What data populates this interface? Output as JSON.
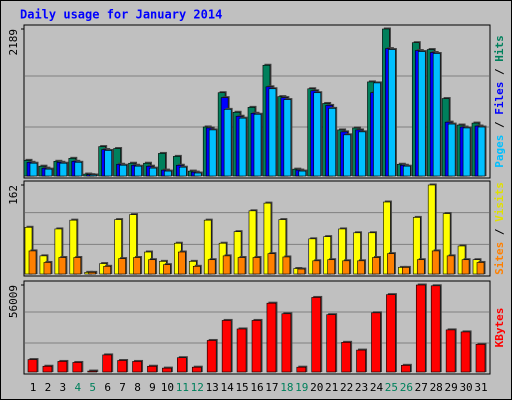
{
  "chart_data": [
    {
      "type": "bar",
      "title": "Daily usage for January 2014",
      "ylim": [
        0,
        2189
      ],
      "yticks": [
        2189
      ],
      "legend_separator": " / ",
      "series": [
        {
          "name": "Hits",
          "color": "#00805c",
          "values": [
            233,
            146,
            219,
            263,
            29,
            438,
            409,
            190,
            190,
            336,
            292,
            73,
            730,
            1240,
            949,
            1022,
            1649,
            1182,
            102,
            1299,
            1080,
            686,
            715,
            1401,
            2189,
            175,
            1985,
            1883,
            1153,
            759,
            788
          ]
        },
        {
          "name": "Files",
          "color": "#0000ff",
          "values": [
            204,
            117,
            204,
            219,
            20,
            394,
            175,
            160,
            146,
            88,
            160,
            58,
            715,
            1167,
            890,
            934,
            1328,
            1167,
            88,
            1269,
            1051,
            657,
            686,
            1240,
            1897,
            160,
            1868,
            1839,
            802,
            729,
            744
          ]
        },
        {
          "name": "Pages",
          "color": "#00c0ff",
          "values": [
            190,
            102,
            190,
            204,
            15,
            380,
            160,
            146,
            117,
            73,
            131,
            44,
            686,
            992,
            861,
            919,
            1299,
            1138,
            73,
            1240,
            1007,
            613,
            657,
            1386,
            1883,
            146,
            1853,
            1824,
            773,
            715,
            729
          ]
        }
      ]
    },
    {
      "type": "bar",
      "ylim": [
        0,
        162
      ],
      "yticks": [
        162
      ],
      "legend_separator": " / ",
      "series": [
        {
          "name": "Visits",
          "color": "#ffff00",
          "values": [
            85,
            33,
            82,
            98,
            3,
            19,
            99,
            108,
            40,
            23,
            56,
            23,
            98,
            56,
            77,
            115,
            129,
            99,
            10,
            64,
            68,
            82,
            75,
            75,
            131,
            12,
            103,
            162,
            110,
            51,
            26
          ]
        },
        {
          "name": "Sites",
          "color": "#ff8000",
          "values": [
            42,
            21,
            30,
            30,
            3,
            14,
            28,
            30,
            26,
            17,
            40,
            14,
            26,
            33,
            30,
            30,
            37,
            31,
            9,
            24,
            26,
            24,
            24,
            30,
            37,
            12,
            26,
            42,
            33,
            26,
            21
          ]
        }
      ]
    },
    {
      "type": "bar",
      "ylim": [
        0,
        56009
      ],
      "yticks": [
        56009
      ],
      "categories": [
        "1",
        "2",
        "3",
        "4",
        "5",
        "6",
        "7",
        "8",
        "9",
        "10",
        "11",
        "12",
        "13",
        "14",
        "15",
        "16",
        "17",
        "18",
        "19",
        "20",
        "21",
        "22",
        "23",
        "24",
        "25",
        "26",
        "27",
        "28",
        "29",
        "30",
        "31"
      ],
      "category_colors": [
        "#000000",
        "#000000",
        "#000000",
        "#00805c",
        "#00805c",
        "#000000",
        "#000000",
        "#000000",
        "#000000",
        "#000000",
        "#00805c",
        "#00805c",
        "#000000",
        "#000000",
        "#000000",
        "#000000",
        "#000000",
        "#00805c",
        "#00805c",
        "#000000",
        "#000000",
        "#000000",
        "#000000",
        "#000000",
        "#00805c",
        "#00805c",
        "#000000",
        "#000000",
        "#000000",
        "#000000",
        "#000000"
      ],
      "series": [
        {
          "name": "KBytes",
          "color": "#ff0000",
          "values": [
            8000,
            3700,
            6800,
            6150,
            600,
            11000,
            7400,
            6800,
            3700,
            2500,
            9200,
            3100,
            20300,
            33200,
            27700,
            33200,
            44300,
            37500,
            3100,
            48000,
            36900,
            19100,
            14100,
            38100,
            49800,
            4300,
            56009,
            55500,
            27100,
            25800,
            17800
          ]
        }
      ]
    }
  ]
}
